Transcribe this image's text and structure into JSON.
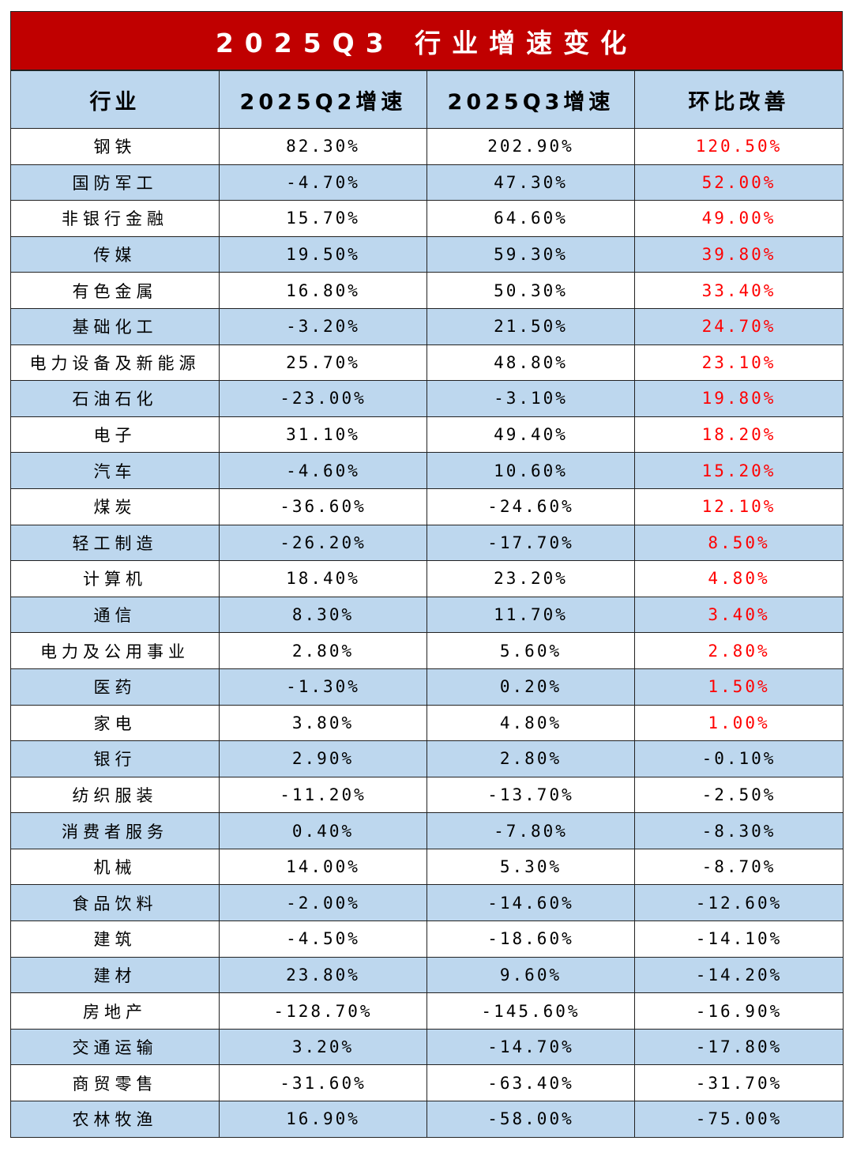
{
  "title": "2025Q3 行业增速变化",
  "headers": [
    "行业",
    "2025Q2增速",
    "2025Q3增速",
    "环比改善"
  ],
  "colors": {
    "title_bg": "#c00000",
    "header_bg": "#bdd7ee",
    "positive": "#ff0000"
  },
  "chart_data": {
    "type": "table",
    "title": "2025Q3 行业增速变化",
    "columns": [
      "行业",
      "2025Q2增速",
      "2025Q3增速",
      "环比改善"
    ],
    "rows": [
      [
        "钢铁",
        "82.30%",
        "202.90%",
        "120.50%"
      ],
      [
        "国防军工",
        "-4.70%",
        "47.30%",
        "52.00%"
      ],
      [
        "非银行金融",
        "15.70%",
        "64.60%",
        "49.00%"
      ],
      [
        "传媒",
        "19.50%",
        "59.30%",
        "39.80%"
      ],
      [
        "有色金属",
        "16.80%",
        "50.30%",
        "33.40%"
      ],
      [
        "基础化工",
        "-3.20%",
        "21.50%",
        "24.70%"
      ],
      [
        "电力设备及新能源",
        "25.70%",
        "48.80%",
        "23.10%"
      ],
      [
        "石油石化",
        "-23.00%",
        "-3.10%",
        "19.80%"
      ],
      [
        "电子",
        "31.10%",
        "49.40%",
        "18.20%"
      ],
      [
        "汽车",
        "-4.60%",
        "10.60%",
        "15.20%"
      ],
      [
        "煤炭",
        "-36.60%",
        "-24.60%",
        "12.10%"
      ],
      [
        "轻工制造",
        "-26.20%",
        "-17.70%",
        "8.50%"
      ],
      [
        "计算机",
        "18.40%",
        "23.20%",
        "4.80%"
      ],
      [
        "通信",
        "8.30%",
        "11.70%",
        "3.40%"
      ],
      [
        "电力及公用事业",
        "2.80%",
        "5.60%",
        "2.80%"
      ],
      [
        "医药",
        "-1.30%",
        "0.20%",
        "1.50%"
      ],
      [
        "家电",
        "3.80%",
        "4.80%",
        "1.00%"
      ],
      [
        "银行",
        "2.90%",
        "2.80%",
        "-0.10%"
      ],
      [
        "纺织服装",
        "-11.20%",
        "-13.70%",
        "-2.50%"
      ],
      [
        "消费者服务",
        "0.40%",
        "-7.80%",
        "-8.30%"
      ],
      [
        "机械",
        "14.00%",
        "5.30%",
        "-8.70%"
      ],
      [
        "食品饮料",
        "-2.00%",
        "-14.60%",
        "-12.60%"
      ],
      [
        "建筑",
        "-4.50%",
        "-18.60%",
        "-14.10%"
      ],
      [
        "建材",
        "23.80%",
        "9.60%",
        "-14.20%"
      ],
      [
        "房地产",
        "-128.70%",
        "-145.60%",
        "-16.90%"
      ],
      [
        "交通运输",
        "3.20%",
        "-14.70%",
        "-17.80%"
      ],
      [
        "商贸零售",
        "-31.60%",
        "-63.40%",
        "-31.70%"
      ],
      [
        "农林牧渔",
        "16.90%",
        "-58.00%",
        "-75.00%"
      ]
    ]
  }
}
